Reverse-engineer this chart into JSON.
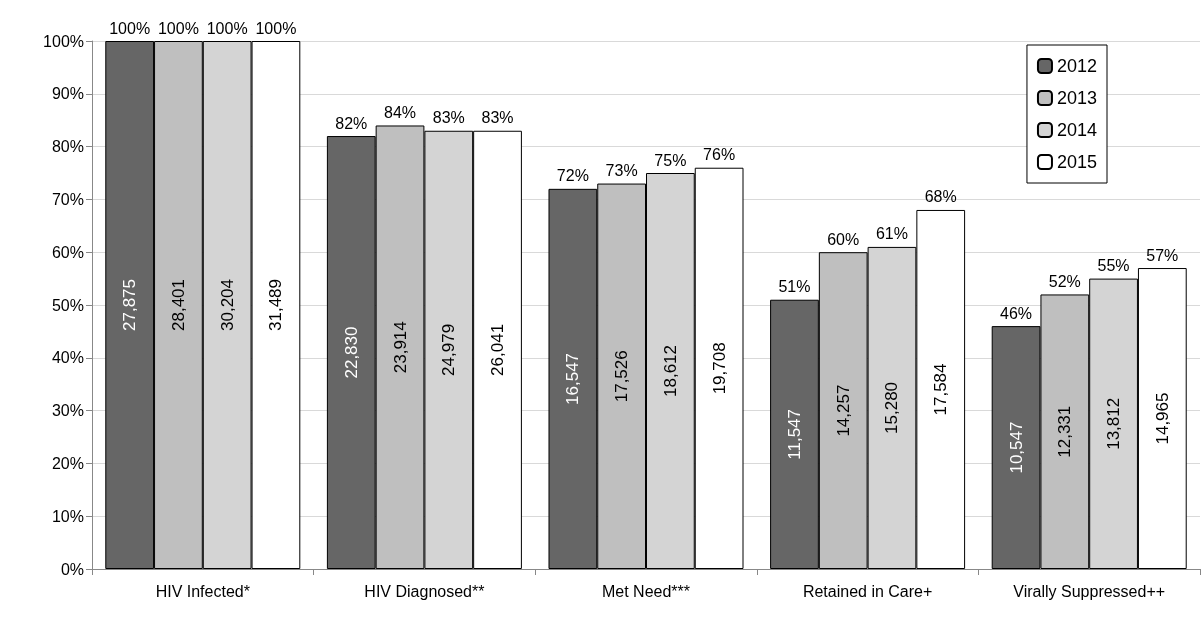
{
  "chart_data": {
    "type": "bar",
    "categories": [
      "HIV Infected*",
      "HIV Diagnosed**",
      "Met Need***",
      "Retained in Care+",
      "Virally Suppressed++"
    ],
    "series": [
      {
        "name": "2012",
        "color": "#666666",
        "values": [
          100,
          82,
          72,
          51,
          46
        ],
        "value_labels": [
          "100%",
          "82%",
          "72%",
          "51%",
          "46%"
        ]
      },
      {
        "name": "2013",
        "color": "#bfbfbf",
        "values": [
          100,
          84,
          73,
          60,
          52
        ],
        "value_labels": [
          "100%",
          "84%",
          "73%",
          "60%",
          "52%"
        ]
      },
      {
        "name": "2014",
        "color": "#d4d4d4",
        "values": [
          100,
          83,
          75,
          61,
          55
        ],
        "value_labels": [
          "100%",
          "83%",
          "75%",
          "61%",
          "55%"
        ]
      },
      {
        "name": "2015",
        "color": "#ffffff",
        "values": [
          100,
          83,
          76,
          68,
          57
        ],
        "value_labels": [
          "100%",
          "83%",
          "76%",
          "68%",
          "57%"
        ]
      }
    ],
    "ylim": [
      0,
      100
    ],
    "yticks": [
      {
        "value": 0,
        "label": "0%"
      },
      {
        "value": 10,
        "label": "10%"
      },
      {
        "value": 20,
        "label": "20%"
      },
      {
        "value": 30,
        "label": "30%"
      },
      {
        "value": 40,
        "label": "40%"
      },
      {
        "value": 50,
        "label": "50%"
      },
      {
        "value": 60,
        "label": "60%"
      },
      {
        "value": 70,
        "label": "70%"
      },
      {
        "value": 80,
        "label": "80%"
      },
      {
        "value": 90,
        "label": "90%"
      },
      {
        "value": 100,
        "label": "100%"
      }
    ],
    "grid": "y",
    "legend": "top right",
    "annotations": [
      "27,875",
      "28,401",
      "30,204",
      "31,489",
      "22,830",
      "23,914",
      "24,979",
      "26,041",
      "16,547",
      "17,526",
      "18,612",
      "19,708",
      "11,547",
      "14,257",
      "15,280",
      "17,584",
      "10,547",
      "12,331",
      "13,812",
      "14,965"
    ]
  }
}
